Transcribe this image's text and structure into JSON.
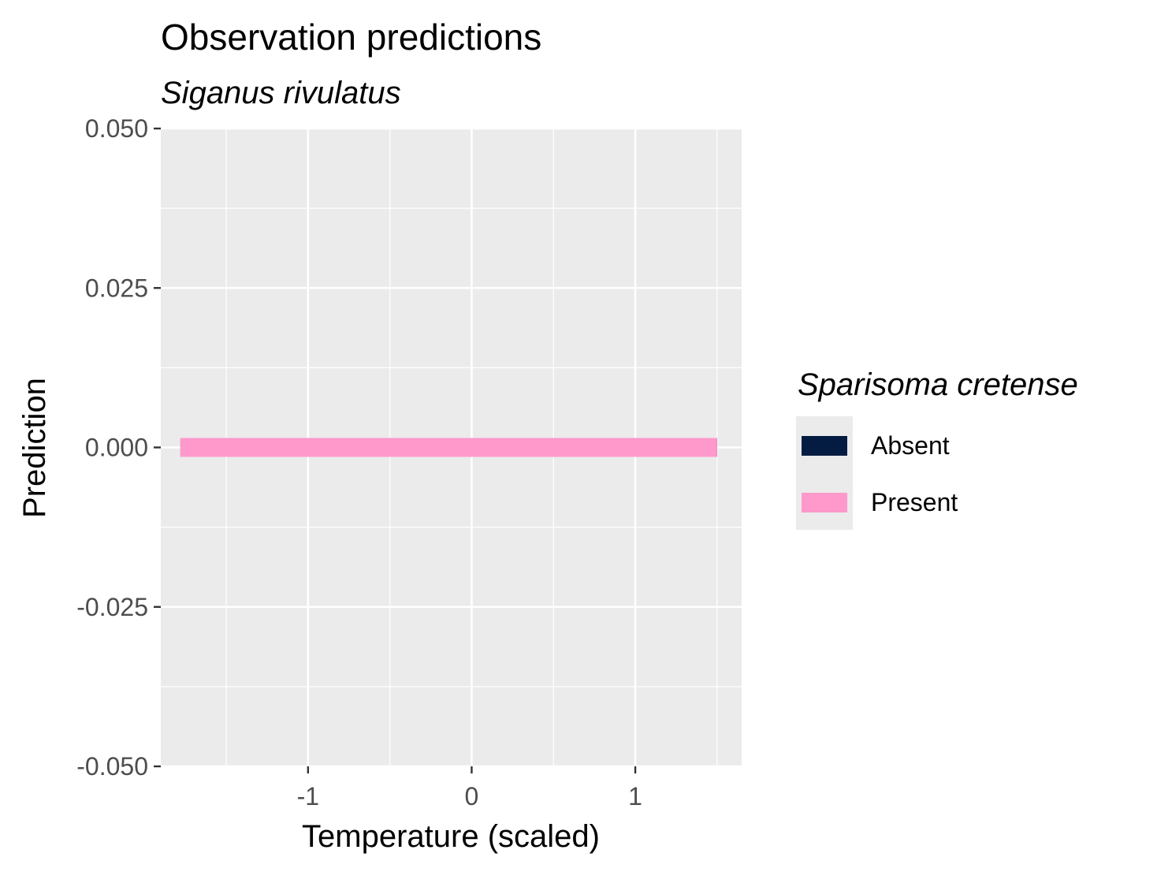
{
  "chart_data": {
    "type": "line",
    "title": "Observation predictions",
    "subtitle": "Siganus rivulatus",
    "xlabel": "Temperature (scaled)",
    "ylabel": "Prediction",
    "xlim": [
      -1.9,
      1.65
    ],
    "ylim": [
      -0.05,
      0.05
    ],
    "x_ticks": [
      -1,
      0,
      1
    ],
    "x_tick_labels": [
      "-1",
      "0",
      "1"
    ],
    "y_ticks": [
      -0.05,
      -0.025,
      0,
      0.025,
      0.05
    ],
    "y_tick_labels": [
      "-0.050",
      "-0.025",
      "0.000",
      "0.025",
      "0.050"
    ],
    "grid": true,
    "legend": {
      "title": "Sparisoma cretense",
      "position": "right",
      "entries": [
        {
          "label": "Absent",
          "color": "#041c42"
        },
        {
          "label": "Present",
          "color": "#ff99cc"
        }
      ]
    },
    "series": [
      {
        "name": "Absent",
        "color": "#041c42",
        "x": [
          -1.78,
          1.5
        ],
        "y": [
          0,
          0
        ]
      },
      {
        "name": "Present",
        "color": "#ff99cc",
        "x": [
          -1.78,
          1.5
        ],
        "y": [
          0,
          0
        ]
      }
    ]
  },
  "colors": {
    "panel_background": "#ebebeb",
    "grid": "#ffffff",
    "tick_text": "#4d4d4d"
  }
}
